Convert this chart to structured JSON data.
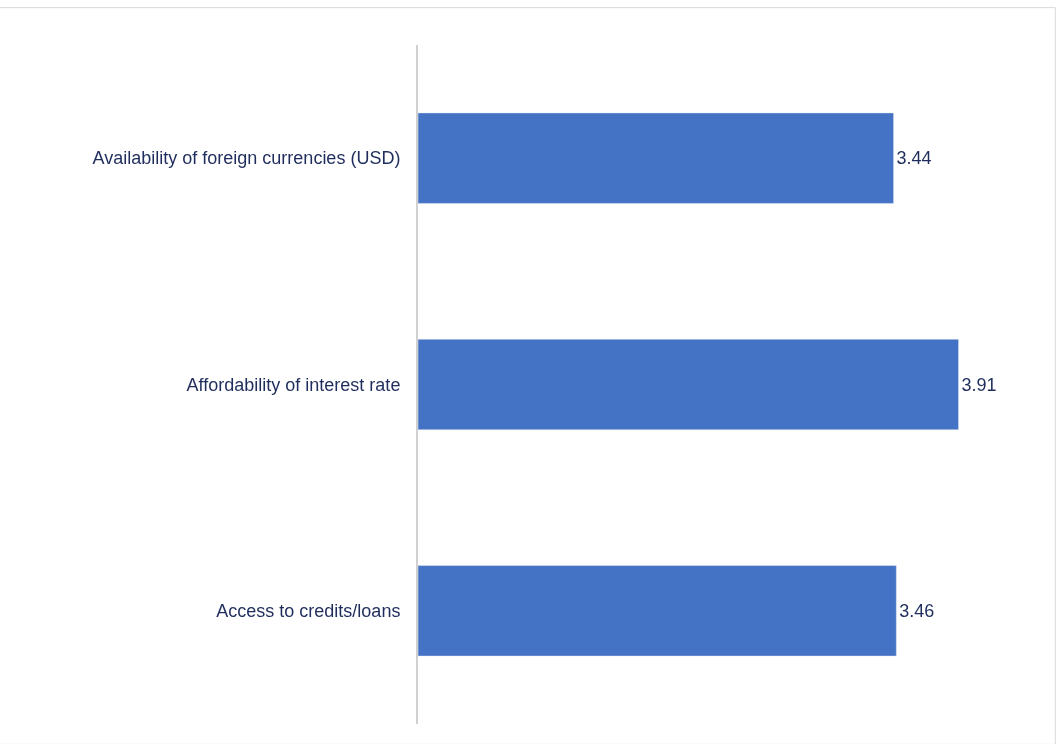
{
  "chart_data": {
    "type": "bar",
    "orientation": "horizontal",
    "categories": [
      "Availability of foreign currencies (USD)",
      "Affordability of interest rate",
      "Access to credits/loans"
    ],
    "values": [
      3.44,
      3.91,
      3.46
    ],
    "color": "#4472c4",
    "data_labels": true,
    "tick_labels": "y"
  }
}
